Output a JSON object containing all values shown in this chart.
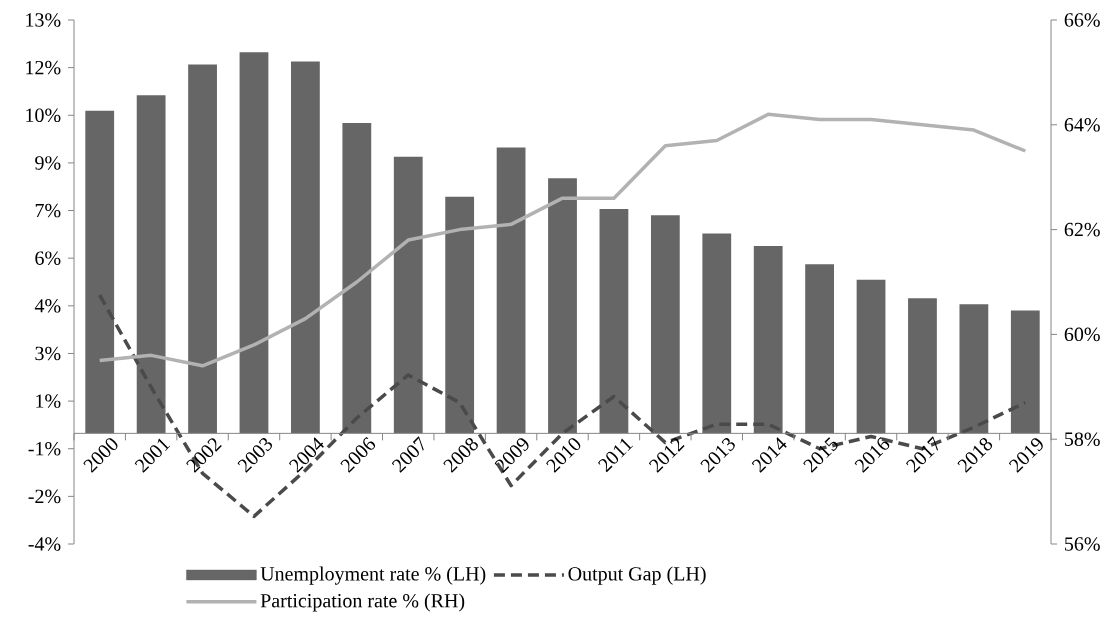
{
  "chart_data": {
    "type": "bar",
    "categories": [
      "2000",
      "2001",
      "2002",
      "2003",
      "2004",
      "2006",
      "2007",
      "2008",
      "2009",
      "2010",
      "2011",
      "2012",
      "2013",
      "2014",
      "2015",
      "2016",
      "2017",
      "2018",
      "2019"
    ],
    "series": [
      {
        "name": "Unemployment rate % (LH)",
        "color": "#666666",
        "values": [
          10.5,
          11.0,
          12.0,
          12.4,
          12.1,
          10.1,
          9.0,
          7.7,
          9.3,
          8.3,
          7.3,
          7.1,
          6.5,
          6.1,
          5.5,
          5.0,
          4.4,
          4.2,
          4.0
        ]
      },
      {
        "name": "Output Gap (LH)",
        "type": "line",
        "line_style": "dashed",
        "color": "#4a4a4a",
        "values": [
          4.5,
          1.5,
          -1.3,
          -2.7,
          -1.2,
          0.5,
          1.9,
          1.0,
          -1.7,
          0.0,
          1.2,
          -0.3,
          0.3,
          0.3,
          -0.5,
          -0.1,
          -0.5,
          0.2,
          1.0
        ]
      },
      {
        "name": "Participation rate % (RH)",
        "type": "line",
        "axis": "y2",
        "color": "#b2b2b2",
        "values": [
          59.5,
          59.6,
          59.4,
          59.8,
          60.3,
          61.0,
          61.8,
          62.0,
          62.1,
          62.6,
          62.6,
          63.6,
          63.7,
          64.2,
          64.1,
          64.1,
          64.0,
          63.9,
          63.5
        ]
      }
    ],
    "ylim": [
      -3.6,
      13.45
    ],
    "yticks": [
      {
        "value": -3.6,
        "label": "-4%"
      },
      {
        "value": -2.05,
        "label": "-2%"
      },
      {
        "value": -0.5,
        "label": "-1%"
      },
      {
        "value": 1.05,
        "label": "1%"
      },
      {
        "value": 2.6,
        "label": "3%"
      },
      {
        "value": 4.15,
        "label": "4%"
      },
      {
        "value": 5.7,
        "label": "6%"
      },
      {
        "value": 7.25,
        "label": "7%"
      },
      {
        "value": 8.8,
        "label": "9%"
      },
      {
        "value": 10.35,
        "label": "10%"
      },
      {
        "value": 11.9,
        "label": "12%"
      },
      {
        "value": 13.45,
        "label": "13%"
      }
    ],
    "y2lim": [
      56,
      66
    ],
    "y2ticks": [
      {
        "value": 56,
        "label": "56%"
      },
      {
        "value": 58,
        "label": "58%"
      },
      {
        "value": 60,
        "label": "60%"
      },
      {
        "value": 62,
        "label": "62%"
      },
      {
        "value": 64,
        "label": "64%"
      },
      {
        "value": 66,
        "label": "66%"
      }
    ],
    "legend": "bottom"
  }
}
